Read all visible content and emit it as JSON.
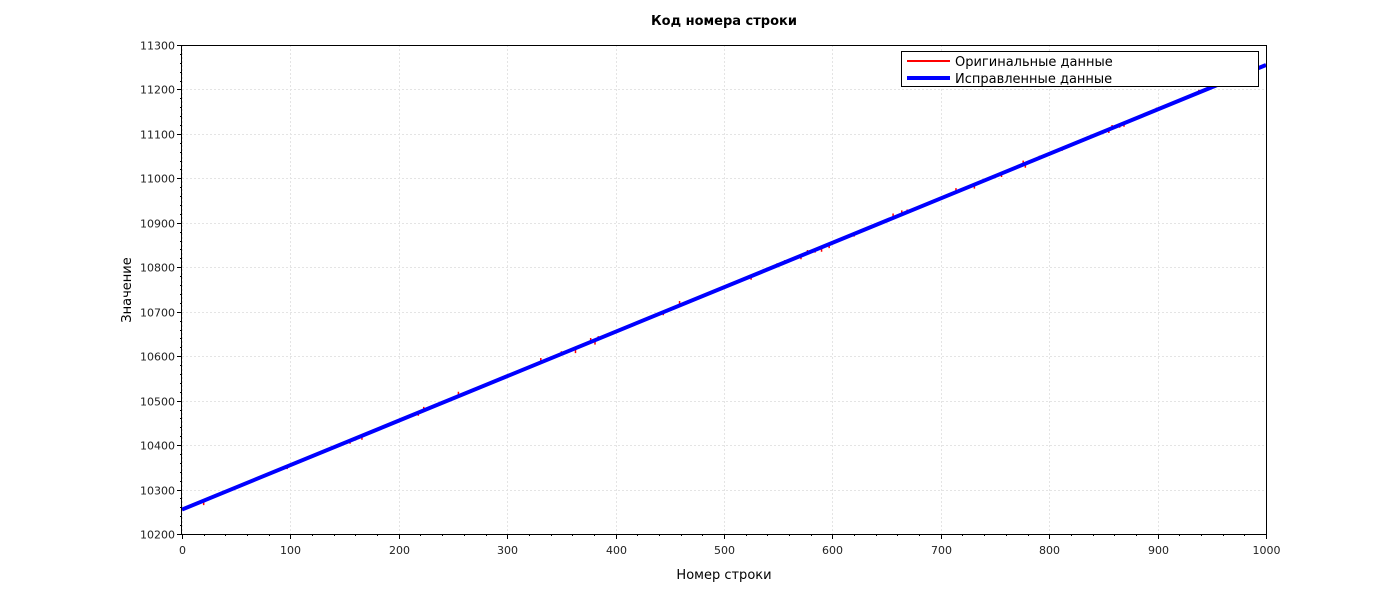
{
  "chart_data": {
    "type": "line",
    "title": "Код номера строки",
    "xlabel": "Номер строки",
    "ylabel": "Значение",
    "xlim": [
      0,
      1000
    ],
    "ylim": [
      10200,
      11300
    ],
    "xticks": [
      0,
      100,
      200,
      300,
      400,
      500,
      600,
      700,
      800,
      900,
      1000
    ],
    "yticks": [
      10200,
      10300,
      10400,
      10500,
      10600,
      10700,
      10800,
      10900,
      11000,
      11100,
      11200,
      11300
    ],
    "grid": true,
    "legend_position": "top-right",
    "series": [
      {
        "name": "Оригинальные данные",
        "color": "#ff0000",
        "style": "thin-line",
        "x": [
          0,
          20,
          20,
          20,
          58,
          58,
          58,
          92,
          92,
          92,
          97,
          97,
          97,
          155,
          155,
          155,
          160,
          160,
          160,
          166,
          166,
          166,
          192,
          192,
          192,
          218,
          218,
          218,
          223,
          223,
          223,
          237,
          237,
          237,
          255,
          255,
          255,
          309,
          309,
          309,
          331,
          331,
          331,
          350,
          350,
          350,
          363,
          363,
          363,
          377,
          377,
          377,
          381,
          381,
          381,
          384,
          384,
          384,
          413,
          413,
          413,
          416,
          416,
          416,
          444,
          444,
          444,
          459,
          459,
          459,
          525,
          525,
          525,
          549,
          549,
          549,
          556,
          556,
          556,
          571,
          571,
          571,
          577,
          577,
          577,
          584,
          584,
          584,
          590,
          590,
          590,
          597,
          597,
          597,
          620,
          620,
          620,
          656,
          656,
          656,
          664,
          664,
          664,
          669,
          669,
          669,
          714,
          714,
          714,
          731,
          731,
          731,
          756,
          756,
          756,
          776,
          776,
          776,
          778,
          778,
          778,
          791,
          791,
          791,
          812,
          812,
          812,
          855,
          855,
          855,
          858,
          858,
          858,
          865,
          865,
          865,
          869,
          869,
          869,
          899,
          899,
          899,
          938,
          938,
          938,
          955,
          955,
          955,
          1000
        ],
        "y": [
          10255,
          10275,
          10265,
          10275,
          10313,
          10309,
          10313,
          10347,
          10345,
          10347,
          10352,
          10346,
          10352,
          10410,
          10403,
          10410,
          10415,
          10410,
          10415,
          10421,
          10412,
          10421,
          10447,
          10443,
          10447,
          10473,
          10466,
          10473,
          10478,
          10486,
          10478,
          10492,
          10489,
          10492,
          10510,
          10520,
          10510,
          10564,
          10567,
          10564,
          10586,
          10596,
          10586,
          10605,
          10611,
          10605,
          10618,
          10607,
          10618,
          10632,
          10641,
          10632,
          10636,
          10626,
          10636,
          10639,
          10645,
          10639,
          10668,
          10665,
          10668,
          10671,
          10674,
          10671,
          10699,
          10692,
          10699,
          10714,
          10724,
          10714,
          10780,
          10772,
          10780,
          10804,
          10809,
          10804,
          10811,
          10816,
          10811,
          10826,
          10818,
          10826,
          10832,
          10839,
          10832,
          10839,
          10833,
          10839,
          10845,
          10835,
          10845,
          10852,
          10843,
          10852,
          10875,
          10869,
          10875,
          10911,
          10921,
          10911,
          10919,
          10928,
          10919,
          10924,
          10930,
          10924,
          10969,
          10978,
          10969,
          10986,
          10977,
          10986,
          11011,
          11003,
          11011,
          11031,
          11040,
          11031,
          11033,
          11024,
          11033,
          11046,
          11051,
          11046,
          11067,
          11062,
          11067,
          11110,
          11102,
          11110,
          11113,
          11120,
          11113,
          11120,
          11114,
          11120,
          11124,
          11116,
          11124,
          11154,
          11159,
          11154,
          11193,
          11199,
          11193,
          11210,
          11216,
          11210,
          11255
        ]
      },
      {
        "name": "Исправленные данные",
        "color": "#0000ff",
        "style": "thick-line",
        "x": [
          0,
          1000
        ],
        "y": [
          10255,
          11255
        ]
      }
    ]
  }
}
